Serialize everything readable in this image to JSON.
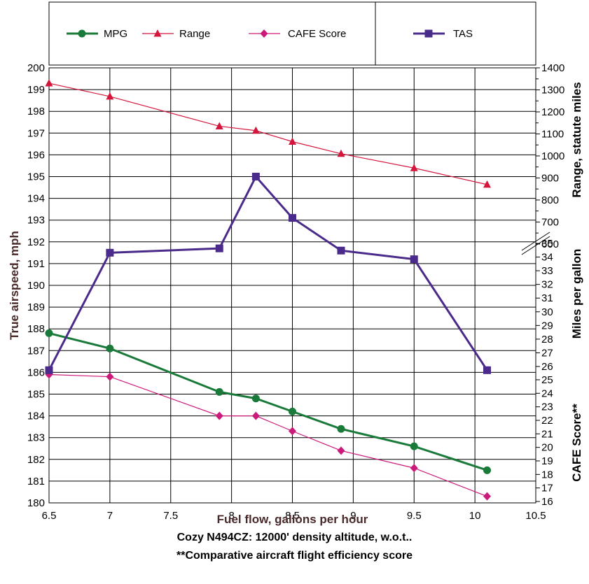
{
  "chart_data": {
    "type": "line",
    "xlabel": "Fuel flow, gallons per hour",
    "x_ticks": [
      "6.5",
      "7",
      "7.5",
      "8",
      "8.5",
      "9",
      "9.5",
      "10",
      "10.5"
    ],
    "xlim": [
      6.5,
      10.5
    ],
    "left_axis": {
      "label": "True airspeed, mph",
      "ylim": [
        180,
        200
      ],
      "ticks": [
        "180",
        "181",
        "182",
        "183",
        "184",
        "185",
        "186",
        "187",
        "188",
        "189",
        "190",
        "191",
        "192",
        "193",
        "194",
        "195",
        "196",
        "197",
        "198",
        "199",
        "200"
      ]
    },
    "right_axis_range": {
      "label": "Range, statute miles",
      "ylim": [
        600,
        1400
      ],
      "ticks": [
        "600",
        "700",
        "800",
        "900",
        "1000",
        "1100",
        "1200",
        "1300",
        "1400"
      ]
    },
    "right_axis_mpg": {
      "label": "Miles per gallon",
      "ticks": [
        "26",
        "27",
        "28",
        "29",
        "30",
        "31",
        "32",
        "33",
        "34",
        "35"
      ]
    },
    "right_axis_cafe": {
      "label": "CAFE Score**",
      "ticks": [
        "16",
        "17",
        "18",
        "19",
        "20",
        "21",
        "22",
        "23",
        "24",
        "25"
      ]
    },
    "series": [
      {
        "name": "MPG",
        "color": "#1a7a3a",
        "marker": "circle",
        "x": [
          6.5,
          7,
          7.9,
          8.2,
          8.5,
          8.9,
          9.5,
          10.1
        ],
        "y_left": [
          187.8,
          187.1,
          185.1,
          184.8,
          184.2,
          183.4,
          182.6,
          181.5
        ]
      },
      {
        "name": "Range",
        "color": "#d4163c",
        "marker": "triangle",
        "x": [
          6.5,
          7,
          7.9,
          8.2,
          8.5,
          8.9,
          9.5,
          10.1
        ],
        "values": [
          1330,
          1270,
          1135,
          1115,
          1065,
          1010,
          945,
          870
        ]
      },
      {
        "name": "CAFE Score",
        "color": "#cc1a7a",
        "marker": "diamond",
        "x": [
          6.5,
          7,
          7.9,
          8.2,
          8.5,
          8.9,
          9.5,
          10.1
        ],
        "y_left": [
          185.9,
          185.8,
          184.0,
          184.0,
          183.3,
          182.4,
          181.6,
          180.3
        ]
      },
      {
        "name": "TAS",
        "color": "#4a2a8a",
        "marker": "square",
        "x": [
          6.5,
          7,
          7.9,
          8.2,
          8.5,
          8.9,
          9.5,
          10.1
        ],
        "values": [
          186.1,
          191.5,
          191.7,
          195.0,
          193.1,
          191.6,
          191.2,
          186.1
        ]
      }
    ],
    "grid": true,
    "legend_position": "top"
  },
  "caption_line1": "Cozy N494CZ:  12000' density altitude, w.o.t..",
  "caption_line2": "**Comparative aircraft flight efficiency score"
}
